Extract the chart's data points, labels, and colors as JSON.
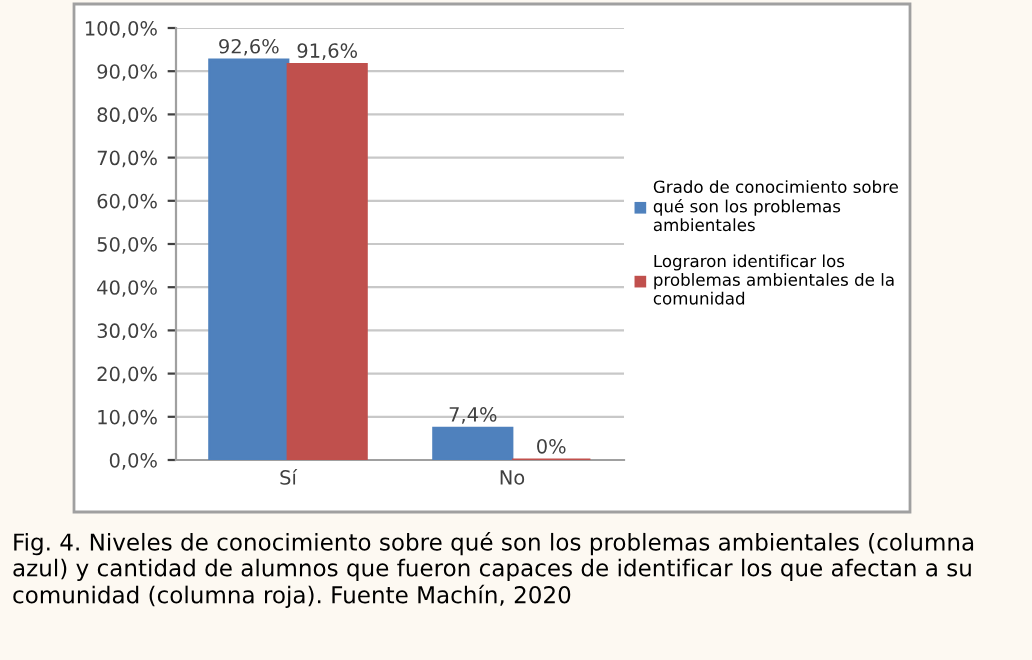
{
  "chart_data": {
    "type": "bar",
    "categories": [
      "Sí",
      "No"
    ],
    "series": [
      {
        "name": "Grado de conocimiento sobre qué son los problemas ambientales",
        "color": "#4f81bd",
        "values": [
          92.6,
          7.4
        ],
        "value_labels": [
          "92,6%",
          "7,4%"
        ]
      },
      {
        "name": "Lograron identificar los problemas ambientales de la comunidad",
        "color": "#c0504d",
        "values": [
          91.6,
          0
        ],
        "value_labels": [
          "91,6%",
          "0%"
        ]
      }
    ],
    "ylim": [
      0,
      100
    ],
    "yticks": [
      {
        "value": 0,
        "label": "0,0%"
      },
      {
        "value": 10,
        "label": "10,0%"
      },
      {
        "value": 20,
        "label": "20,0%"
      },
      {
        "value": 30,
        "label": "30,0%"
      },
      {
        "value": 40,
        "label": "40,0%"
      },
      {
        "value": 50,
        "label": "50,0%"
      },
      {
        "value": 60,
        "label": "60,0%"
      },
      {
        "value": 70,
        "label": "70,0%"
      },
      {
        "value": 80,
        "label": "80,0%"
      },
      {
        "value": 90,
        "label": "90,0%"
      },
      {
        "value": 100,
        "label": "100,0%"
      }
    ],
    "grid": "y",
    "legend": "right",
    "annotations": [
      "Fig. 4. Niveles de conocimiento sobre qué son los problemas ambientales (columna azul) y cantidad de alumnos que fueron capaces de identificar los que afectan a su comunidad (columna roja). Fuente Machín, 2020"
    ]
  }
}
